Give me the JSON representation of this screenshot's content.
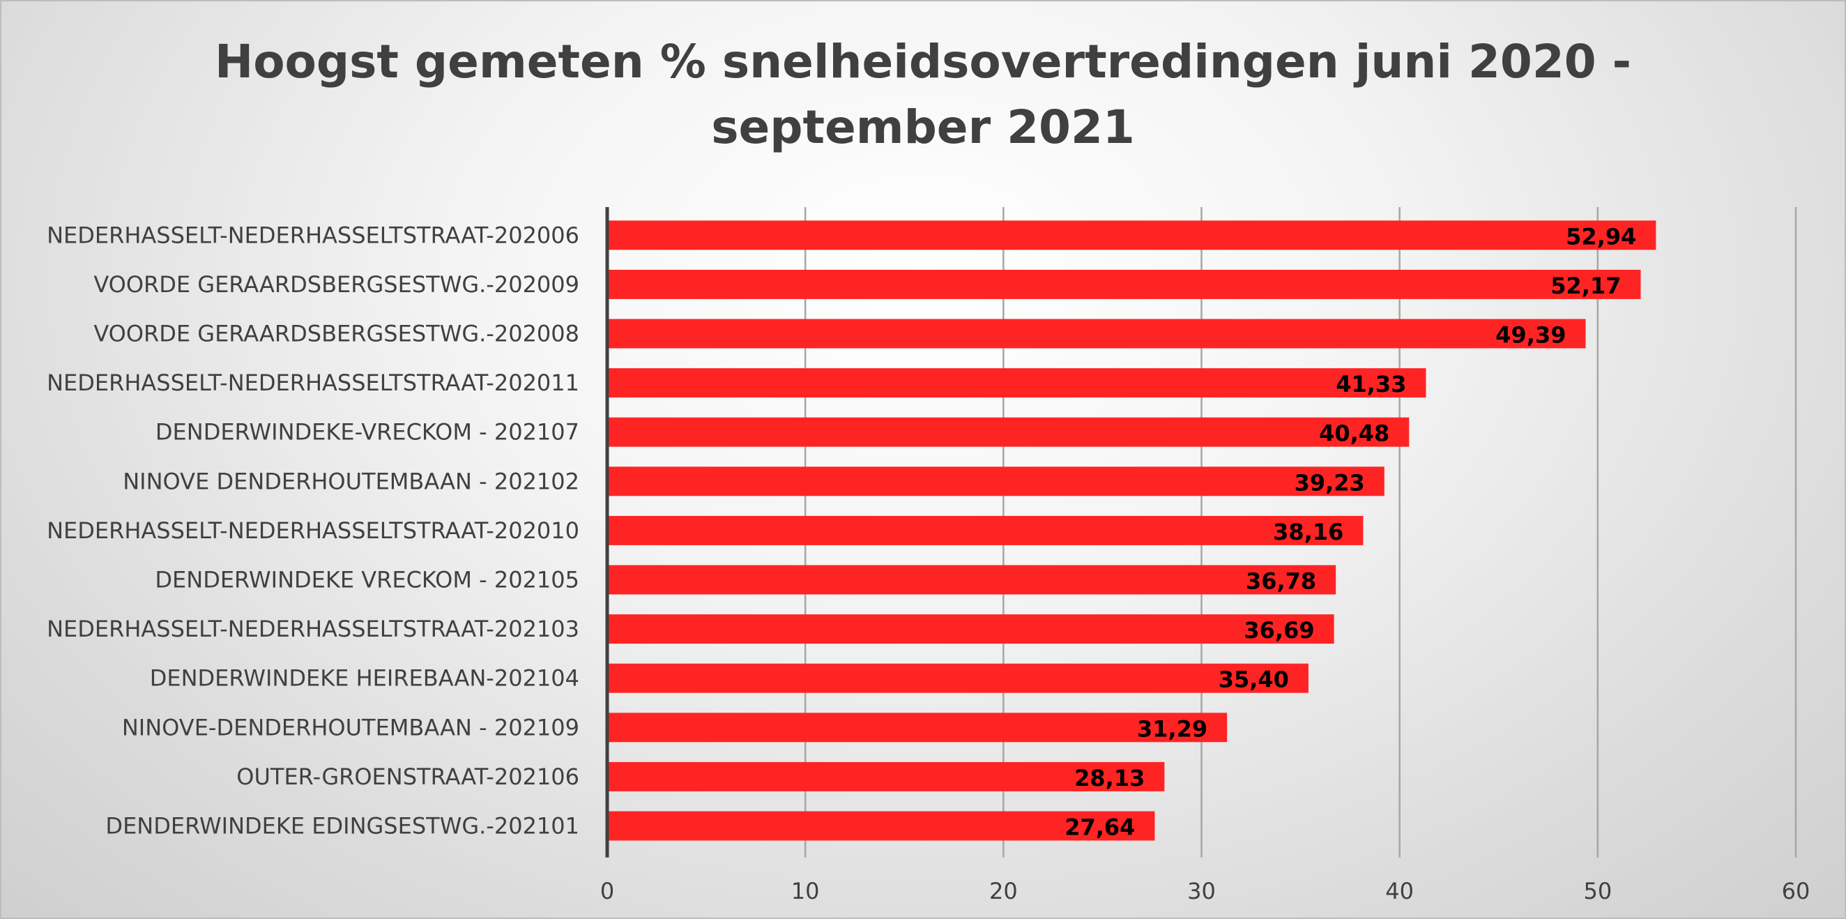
{
  "chart_data": {
    "type": "bar",
    "orientation": "horizontal",
    "title_lines": [
      "Hoogst gemeten % snelheidsovertredingen juni 2020 -",
      "september 2021"
    ],
    "categories": [
      "NEDERHASSELT-NEDERHASSELTSTRAAT-202006",
      "VOORDE GERAARDSBERGSESTWG.-202009",
      "VOORDE GERAARDSBERGSESTWG.-202008",
      "NEDERHASSELT-NEDERHASSELTSTRAAT-202011",
      "DENDERWINDEKE-VRECKOM  - 202107",
      "NINOVE DENDERHOUTEMBAAN  - 202102",
      "NEDERHASSELT-NEDERHASSELTSTRAAT-202010",
      "DENDERWINDEKE  VRECKOM - 202105",
      "NEDERHASSELT-NEDERHASSELTSTRAAT-202103",
      "DENDERWINDEKE  HEIREBAAN-202104",
      "NINOVE-DENDERHOUTEMBAAN  - 202109",
      "OUTER-GROENSTRAAT-202106",
      "DENDERWINDEKE  EDINGSESTWG.-202101"
    ],
    "values": [
      52.94,
      52.17,
      49.39,
      41.33,
      40.48,
      39.23,
      38.16,
      36.78,
      36.69,
      35.4,
      31.29,
      28.13,
      27.64
    ],
    "data_labels": [
      "52,94",
      "52,17",
      "49,39",
      "41,33",
      "40,48",
      "39,23",
      "38,16",
      "36,78",
      "36,69",
      "35,40",
      "31,29",
      "28,13",
      "27,64"
    ],
    "xlim": [
      0,
      60
    ],
    "xticks": [
      0,
      10,
      20,
      30,
      40,
      50,
      60
    ],
    "xtick_labels": [
      "0",
      "10",
      "20",
      "30",
      "40",
      "50",
      "60"
    ],
    "grid": "vertical",
    "legend": "none",
    "bar_color": "#ff2424"
  }
}
